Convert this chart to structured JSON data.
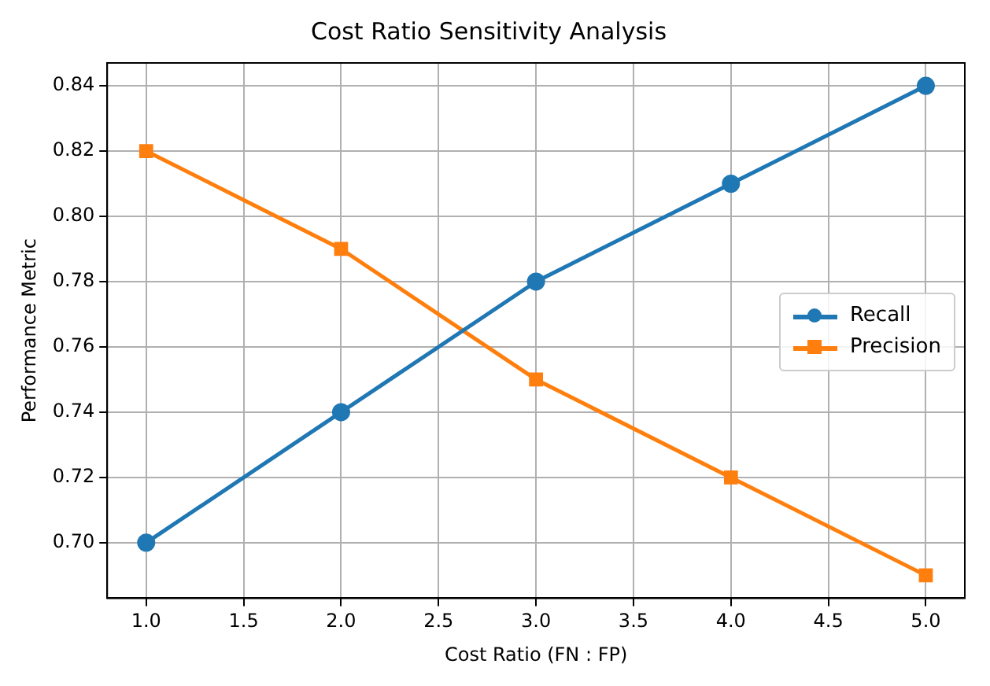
{
  "chart_data": {
    "type": "line",
    "title": "Cost Ratio Sensitivity Analysis",
    "xlabel": "Cost Ratio (FN : FP)",
    "ylabel": "Performance Metric",
    "x": [
      1,
      2,
      3,
      4,
      5
    ],
    "series": [
      {
        "name": "Recall",
        "color": "#1f77b4",
        "marker": "circle",
        "values": [
          0.7,
          0.74,
          0.78,
          0.81,
          0.84
        ]
      },
      {
        "name": "Precision",
        "color": "#ff7f0e",
        "marker": "square",
        "values": [
          0.82,
          0.79,
          0.75,
          0.72,
          0.69
        ]
      }
    ],
    "xlim": [
      0.8,
      5.2
    ],
    "xticks": [
      {
        "value": 1,
        "label": "1.0"
      },
      {
        "value": 1.5,
        "label": "1.5"
      },
      {
        "value": 2,
        "label": "2.0"
      },
      {
        "value": 2.5,
        "label": "2.5"
      },
      {
        "value": 3,
        "label": "3.0"
      },
      {
        "value": 3.5,
        "label": "3.5"
      },
      {
        "value": 4,
        "label": "4.0"
      },
      {
        "value": 4.5,
        "label": "4.5"
      },
      {
        "value": 5,
        "label": "5.0"
      }
    ],
    "ylim": [
      0.683,
      0.847
    ],
    "yticks": [
      {
        "value": 0.7,
        "label": "0.70"
      },
      {
        "value": 0.72,
        "label": "0.72"
      },
      {
        "value": 0.74,
        "label": "0.74"
      },
      {
        "value": 0.76,
        "label": "0.76"
      },
      {
        "value": 0.78,
        "label": "0.78"
      },
      {
        "value": 0.8,
        "label": "0.80"
      },
      {
        "value": 0.82,
        "label": "0.82"
      },
      {
        "value": 0.84,
        "label": "0.84"
      }
    ],
    "grid": true,
    "legend": "center right",
    "line_style": "solid"
  }
}
